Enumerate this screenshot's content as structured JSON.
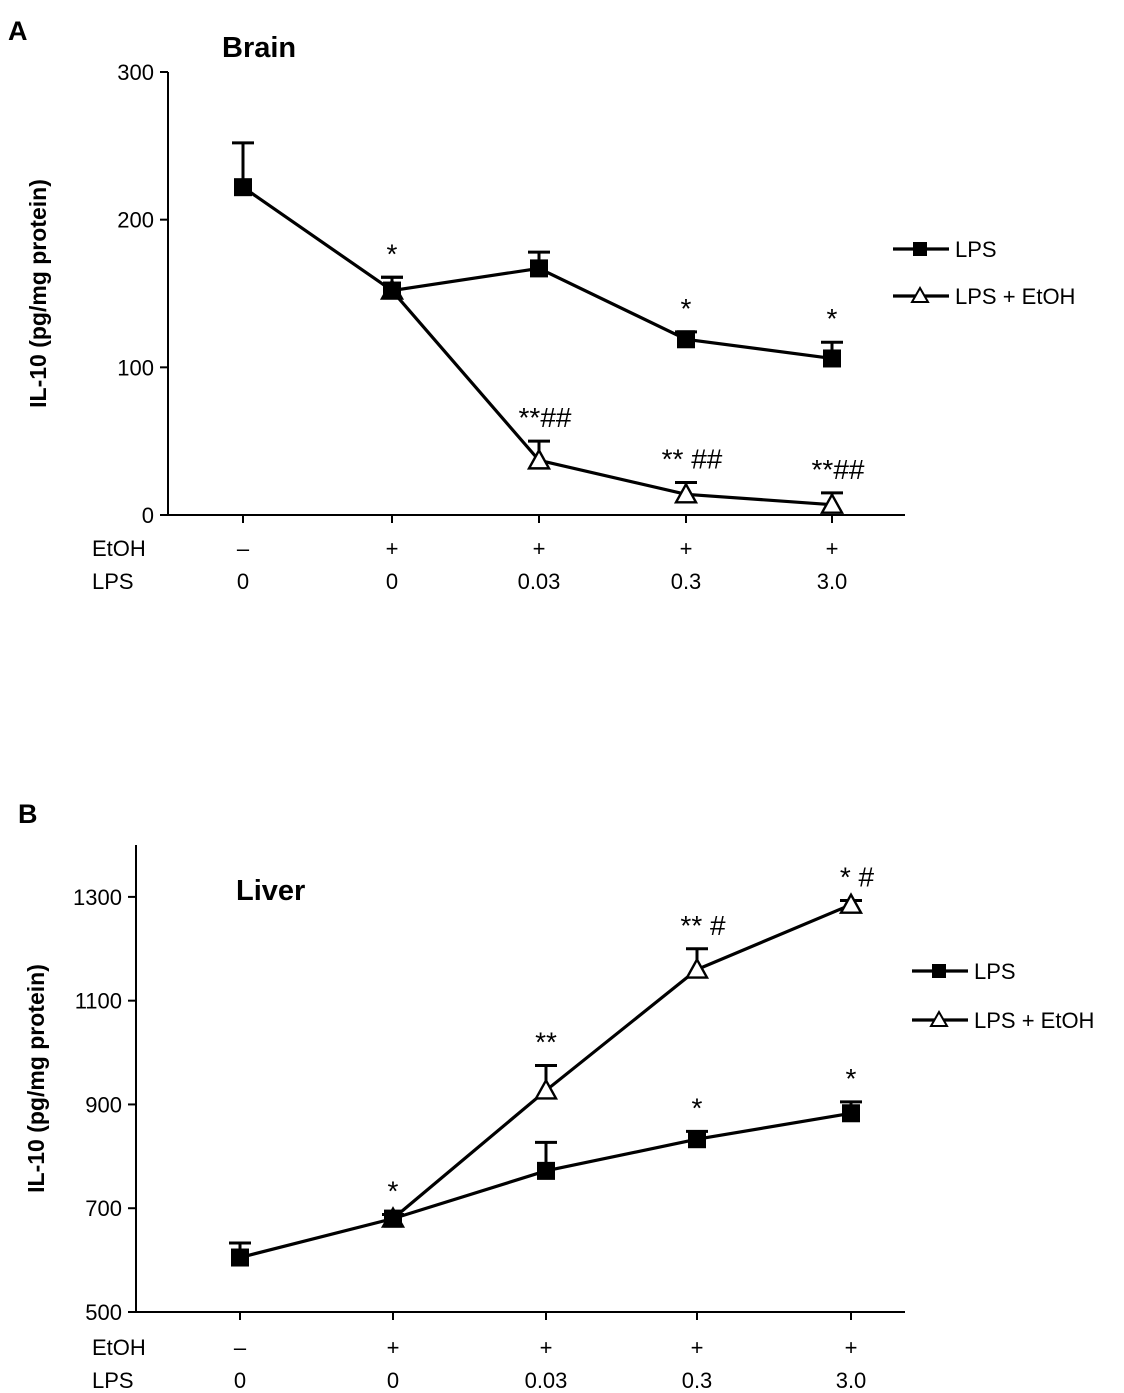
{
  "chart_data": [
    {
      "type": "line",
      "panel_label": "A",
      "title": "Brain",
      "xlabel": "",
      "ylabel": "IL-10 (pg/mg protein)",
      "ylim": [
        0,
        300
      ],
      "yticks": [
        0,
        100,
        200,
        300
      ],
      "row_labels": [
        "EtOH",
        "LPS"
      ],
      "groups": [
        {
          "etoh": "–",
          "lps": "0"
        },
        {
          "etoh": "+",
          "lps": "0"
        },
        {
          "etoh": "+",
          "lps": "0.03"
        },
        {
          "etoh": "+",
          "lps": "0.3"
        },
        {
          "etoh": "+",
          "lps": "3.0"
        }
      ],
      "legend_position": "right",
      "grid": false,
      "series": [
        {
          "name": "LPS",
          "marker": "filled-square",
          "x_index": [
            0,
            1,
            2,
            3,
            4
          ],
          "values": [
            222,
            152,
            167,
            119,
            106
          ],
          "errors": [
            30,
            9,
            11,
            5,
            11
          ],
          "annotations": [
            "",
            "*",
            "",
            "*",
            "*"
          ]
        },
        {
          "name": "LPS + EtOH",
          "marker": "open-triangle",
          "x_index": [
            1,
            2,
            3,
            4
          ],
          "values": [
            152,
            37,
            14,
            7
          ],
          "errors": [
            9,
            13,
            8,
            8
          ],
          "annotations": [
            "",
            "**##",
            "** ##",
            "**##"
          ]
        }
      ]
    },
    {
      "type": "line",
      "panel_label": "B",
      "title": "Liver",
      "xlabel": "",
      "ylabel": "IL-10 (pg/mg protein)",
      "ylim": [
        500,
        1400
      ],
      "yticks": [
        500,
        700,
        900,
        1100,
        1300
      ],
      "row_labels": [
        "EtOH",
        "LPS"
      ],
      "groups": [
        {
          "etoh": "–",
          "lps": "0"
        },
        {
          "etoh": "+",
          "lps": "0"
        },
        {
          "etoh": "+",
          "lps": "0.03"
        },
        {
          "etoh": "+",
          "lps": "0.3"
        },
        {
          "etoh": "+",
          "lps": "3.0"
        }
      ],
      "legend_position": "right",
      "grid": false,
      "series": [
        {
          "name": "LPS",
          "marker": "filled-square",
          "x_index": [
            0,
            1,
            2,
            3,
            4
          ],
          "values": [
            605,
            680,
            772,
            833,
            883
          ],
          "errors": [
            28,
            8,
            55,
            15,
            22
          ],
          "annotations": [
            "",
            "*",
            "",
            "*",
            "*"
          ]
        },
        {
          "name": "LPS + EtOH",
          "marker": "open-triangle",
          "x_index": [
            1,
            2,
            3,
            4
          ],
          "values": [
            680,
            927,
            1160,
            1285
          ],
          "errors": [
            8,
            48,
            40,
            8
          ],
          "annotations": [
            "",
            "**",
            "** #",
            "* #"
          ]
        }
      ]
    }
  ]
}
